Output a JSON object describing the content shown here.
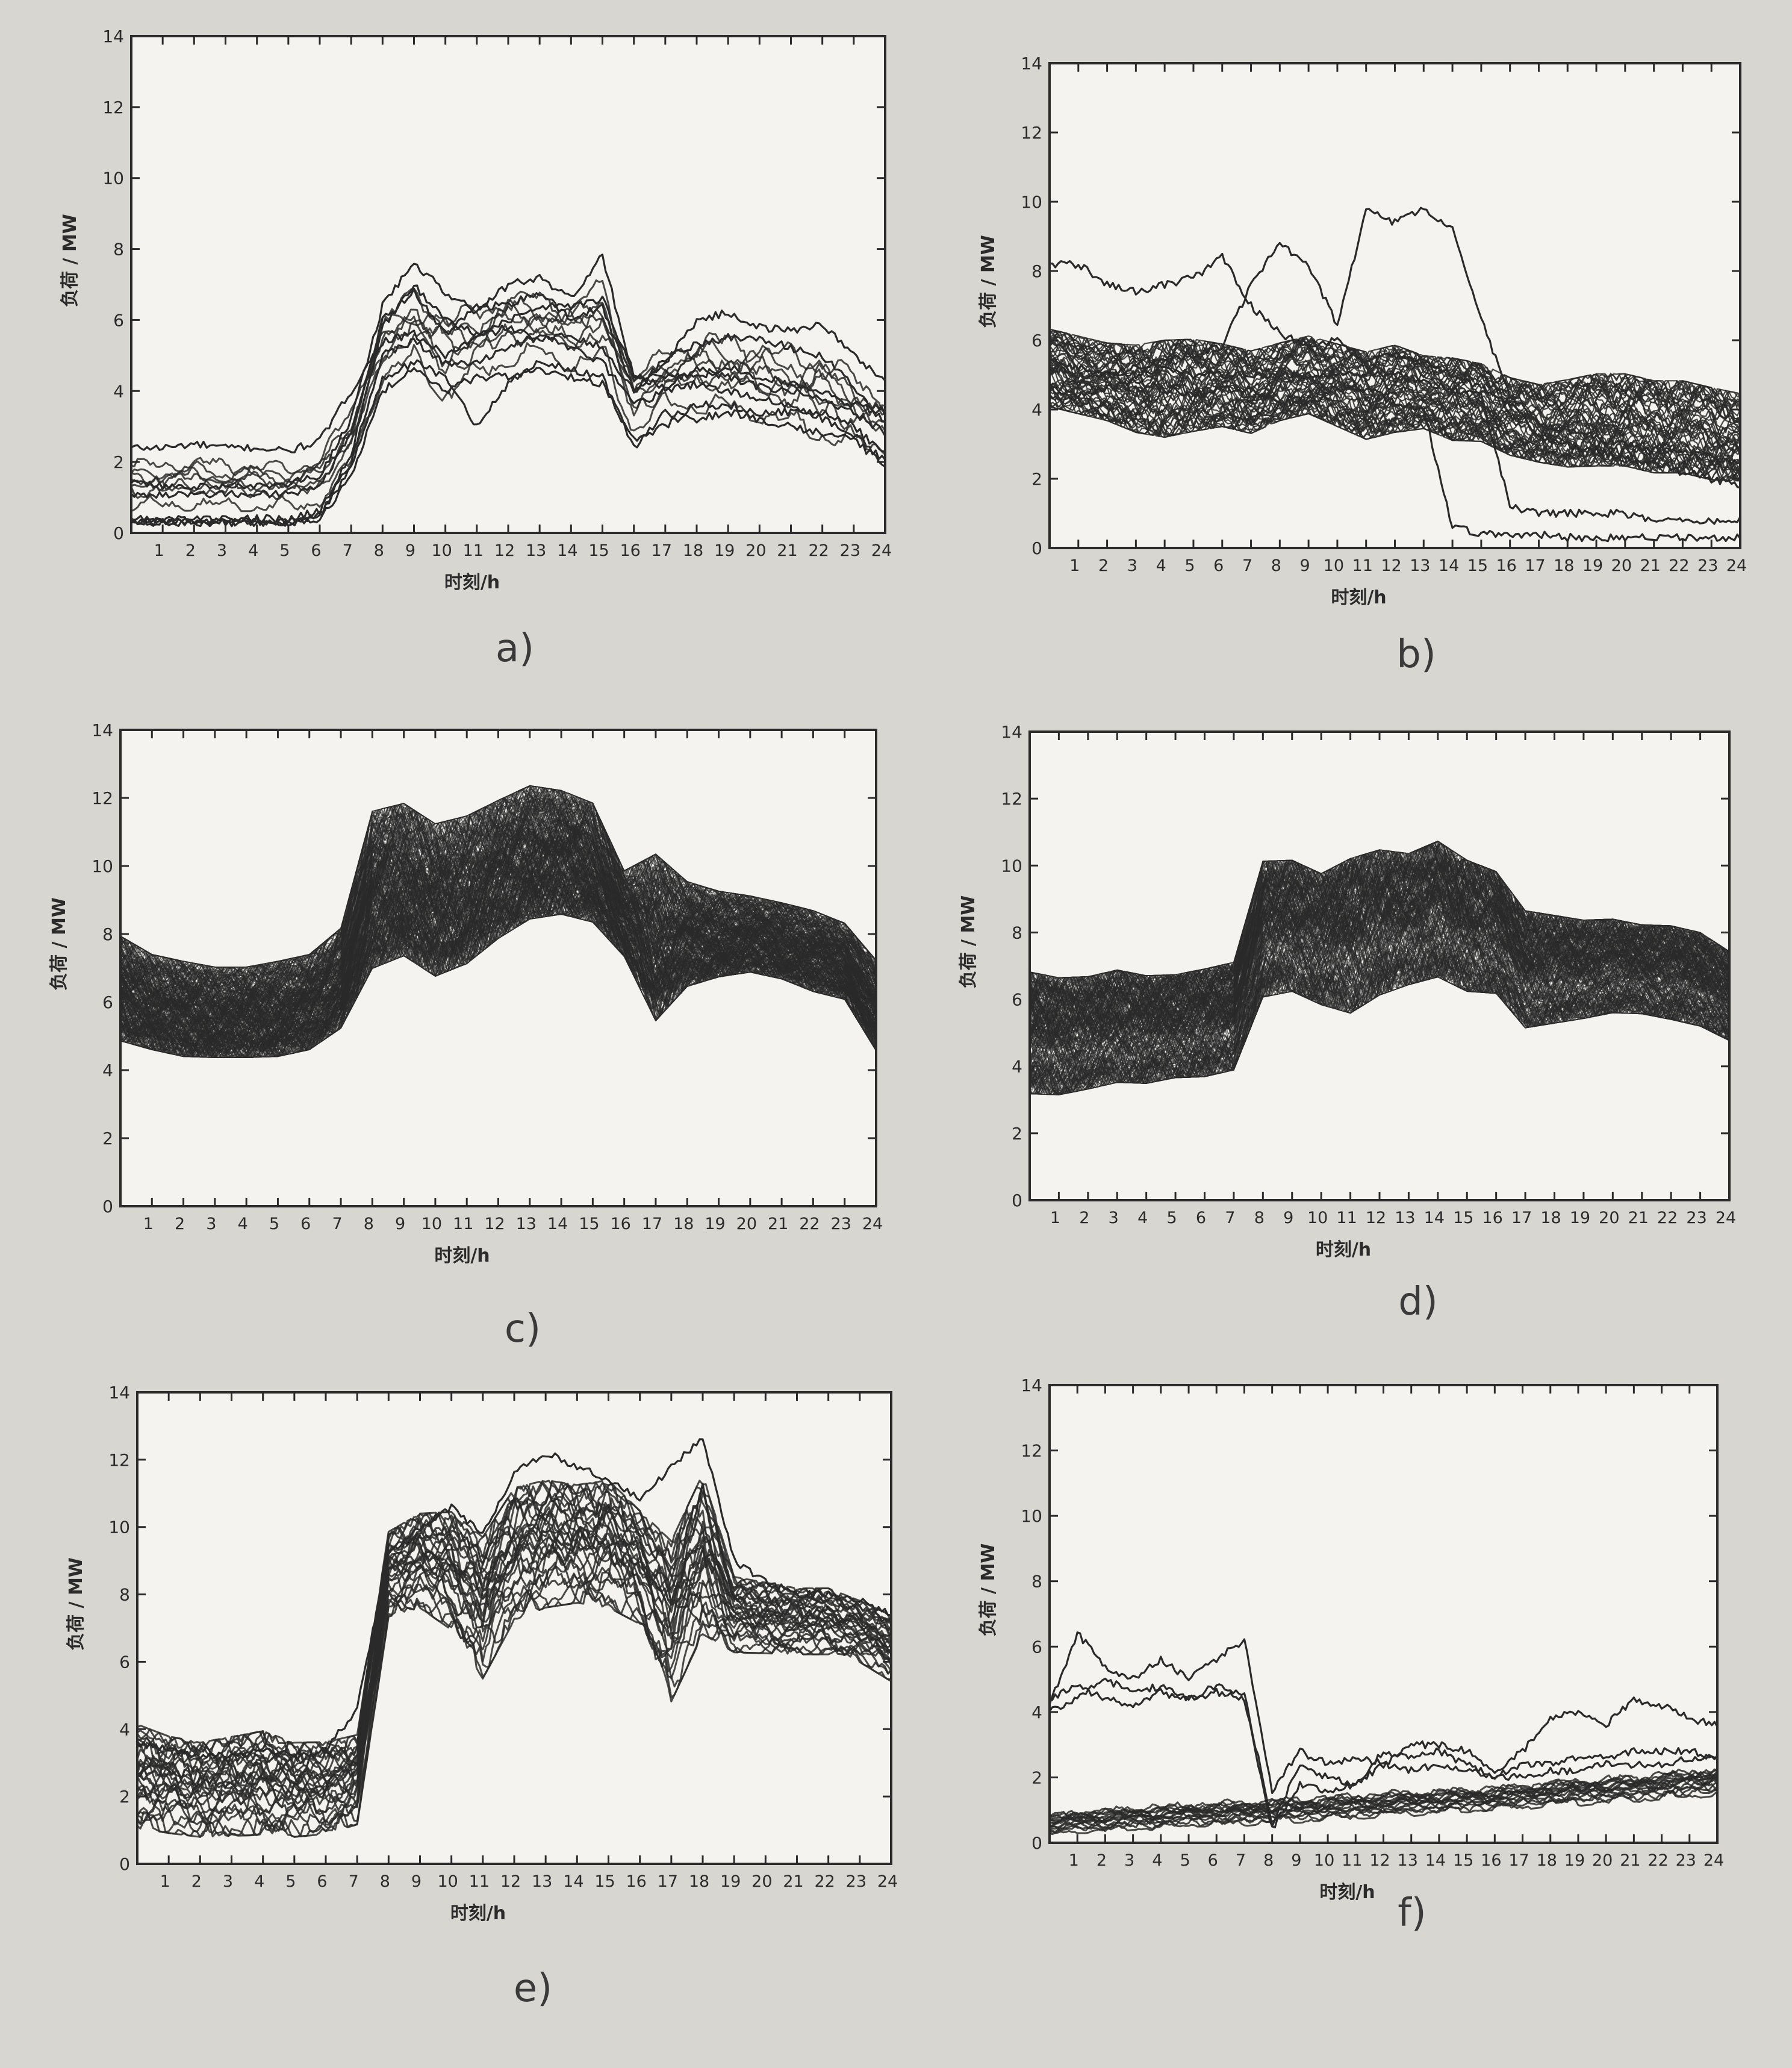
{
  "chart_data": [
    {
      "panel": "a)",
      "type": "line",
      "xlabel": "时刻/h",
      "ylabel": "负荷 / MW",
      "xticks": [
        1,
        2,
        3,
        4,
        5,
        6,
        7,
        8,
        9,
        10,
        11,
        12,
        13,
        14,
        15,
        16,
        17,
        18,
        19,
        20,
        21,
        22,
        23,
        24
      ],
      "yticks": [
        0,
        2,
        4,
        6,
        8,
        10,
        12,
        14
      ],
      "xlim": [
        0,
        24
      ],
      "ylim": [
        0,
        14
      ],
      "band": {
        "count": 7,
        "min": [
          0.3,
          0.3,
          0.3,
          0.3,
          0.3,
          0.3,
          0.4,
          1.4,
          3.8,
          4.2,
          3.0,
          3.8,
          4.2,
          4.4,
          4.1,
          4.2,
          2.3,
          3.0,
          2.9,
          2.8,
          2.6,
          2.3,
          2.0,
          1.8,
          1.8
        ],
        "max": [
          2.4,
          2.4,
          2.5,
          2.4,
          2.4,
          2.3,
          2.6,
          4.0,
          6.6,
          7.6,
          7.0,
          6.9,
          7.4,
          7.3,
          7.0,
          7.8,
          5.0,
          5.7,
          6.1,
          6.2,
          6.0,
          5.9,
          5.8,
          5.2,
          4.3
        ]
      },
      "series": [
        {
          "values": [
            2.4,
            2.4,
            2.5,
            2.4,
            2.4,
            2.3,
            2.6,
            4.0,
            5.4,
            5.6,
            5.0,
            5.5,
            5.8,
            5.4,
            5.6,
            5.2,
            4.0,
            4.8,
            6.0,
            6.2,
            5.8,
            5.7,
            5.9,
            5.0,
            4.3
          ]
        },
        {
          "values": [
            1.4,
            1.3,
            1.3,
            1.3,
            1.3,
            1.4,
            1.6,
            3.2,
            6.4,
            7.6,
            6.8,
            6.2,
            7.0,
            7.2,
            6.6,
            7.8,
            4.4,
            4.4,
            4.4,
            4.7,
            4.4,
            4.2,
            4.0,
            3.6,
            3.4
          ]
        },
        {
          "values": [
            1.1,
            1.1,
            1.1,
            1.1,
            1.1,
            1.1,
            1.3,
            2.8,
            6.0,
            6.8,
            5.6,
            6.4,
            6.4,
            6.8,
            6.0,
            6.4,
            4.0,
            4.9,
            5.3,
            5.5,
            5.5,
            5.2,
            5.0,
            4.1,
            3.1
          ]
        },
        {
          "values": [
            0.4,
            0.4,
            0.4,
            0.4,
            0.4,
            0.4,
            0.6,
            2.2,
            5.8,
            7.0,
            6.0,
            5.6,
            6.0,
            6.4,
            6.4,
            6.6,
            4.4,
            4.1,
            4.6,
            4.4,
            4.1,
            4.0,
            3.8,
            3.4,
            2.8
          ]
        },
        {
          "values": [
            0.3,
            0.3,
            0.3,
            0.3,
            0.3,
            0.3,
            0.5,
            2.0,
            5.0,
            5.4,
            4.8,
            4.8,
            5.2,
            5.6,
            5.2,
            4.8,
            3.6,
            4.0,
            4.2,
            4.0,
            3.8,
            3.6,
            3.2,
            2.8,
            2.0
          ]
        },
        {
          "values": [
            0.3,
            0.3,
            0.3,
            0.3,
            0.3,
            0.3,
            0.5,
            1.8,
            4.4,
            4.8,
            4.4,
            3.0,
            4.2,
            4.8,
            4.6,
            4.4,
            2.4,
            3.4,
            3.2,
            3.4,
            3.2,
            3.0,
            2.8,
            2.6,
            1.9
          ]
        },
        {
          "values": [
            0.3,
            0.3,
            0.3,
            0.3,
            0.3,
            0.3,
            0.4,
            1.6,
            4.0,
            4.6,
            4.0,
            4.4,
            4.4,
            4.6,
            4.4,
            4.2,
            2.6,
            3.0,
            3.6,
            3.6,
            3.4,
            3.4,
            3.4,
            3.0,
            2.2
          ]
        }
      ]
    },
    {
      "panel": "b)",
      "type": "line",
      "xlabel": "时刻/h",
      "ylabel": "负荷 / MW",
      "xticks": [
        1,
        2,
        3,
        4,
        5,
        6,
        7,
        8,
        9,
        10,
        11,
        12,
        13,
        14,
        15,
        16,
        17,
        18,
        19,
        20,
        21,
        22,
        23,
        24
      ],
      "yticks": [
        0,
        2,
        4,
        6,
        8,
        10,
        12,
        14
      ],
      "xlim": [
        0,
        24
      ],
      "ylim": [
        0,
        14
      ],
      "band": {
        "count": 55,
        "min": [
          3.6,
          3.4,
          3.2,
          2.8,
          2.6,
          2.8,
          3.0,
          2.8,
          3.2,
          3.4,
          3.0,
          2.6,
          2.8,
          3.0,
          2.6,
          2.6,
          2.2,
          2.0,
          1.8,
          1.8,
          1.8,
          1.6,
          1.6,
          1.4,
          1.4
        ],
        "max": [
          6.8,
          6.6,
          6.4,
          6.4,
          6.6,
          6.6,
          6.4,
          6.2,
          6.4,
          6.6,
          6.4,
          6.2,
          6.4,
          6.0,
          6.0,
          5.8,
          5.4,
          5.2,
          5.4,
          5.6,
          5.6,
          5.4,
          5.4,
          5.2,
          5.0
        ]
      },
      "series": [
        {
          "values": [
            8.2,
            8.2,
            7.6,
            7.4,
            7.6,
            7.8,
            8.4,
            7.0,
            6.2,
            5.8,
            6.0,
            5.4,
            5.6,
            5.4,
            5.0,
            4.6,
            4.2,
            3.2,
            3.0,
            2.8,
            2.6,
            2.4,
            2.2,
            2.0,
            1.8
          ]
        },
        {
          "values": [
            5.4,
            5.2,
            5.0,
            5.2,
            5.4,
            5.6,
            5.8,
            7.6,
            8.8,
            8.2,
            6.4,
            9.8,
            9.4,
            9.8,
            9.2,
            6.6,
            4.4,
            3.6,
            3.4,
            3.2,
            3.0,
            2.8,
            2.8,
            2.6,
            2.4
          ]
        },
        {
          "values": [
            4.6,
            4.4,
            4.6,
            4.8,
            4.6,
            4.4,
            4.6,
            4.6,
            4.2,
            4.2,
            4.6,
            4.6,
            4.2,
            4.0,
            0.6,
            0.4,
            0.4,
            0.4,
            0.3,
            0.3,
            0.3,
            0.3,
            0.3,
            0.3,
            0.3
          ]
        },
        {
          "values": [
            5.2,
            5.0,
            5.0,
            5.0,
            5.2,
            5.0,
            5.0,
            5.0,
            5.0,
            5.0,
            5.0,
            5.0,
            5.0,
            4.8,
            4.6,
            4.4,
            1.2,
            1.0,
            1.0,
            1.0,
            1.0,
            0.8,
            0.8,
            0.8,
            0.8
          ]
        }
      ]
    },
    {
      "panel": "c)",
      "type": "line",
      "xlabel": "时刻/h",
      "ylabel": "负荷 / MW",
      "xticks": [
        1,
        2,
        3,
        4,
        5,
        6,
        7,
        8,
        9,
        10,
        11,
        12,
        13,
        14,
        15,
        16,
        17,
        18,
        19,
        20,
        21,
        22,
        23,
        24
      ],
      "yticks": [
        0,
        2,
        4,
        6,
        8,
        10,
        12,
        14
      ],
      "xlim": [
        0,
        24
      ],
      "ylim": [
        0,
        14
      ],
      "band": {
        "count": 300,
        "min": [
          4.2,
          4.0,
          3.8,
          3.8,
          3.8,
          3.8,
          4.0,
          4.6,
          6.0,
          6.4,
          5.8,
          6.2,
          7.0,
          7.6,
          7.8,
          7.6,
          6.8,
          4.4,
          5.8,
          6.2,
          6.4,
          6.2,
          5.8,
          5.6,
          4.0
        ],
        "max": [
          8.6,
          8.0,
          7.8,
          7.6,
          7.6,
          7.8,
          8.0,
          8.8,
          12.6,
          12.8,
          12.2,
          12.4,
          12.8,
          13.2,
          13.0,
          12.6,
          10.4,
          11.4,
          10.2,
          9.8,
          9.6,
          9.4,
          9.2,
          8.8,
          7.8
        ]
      },
      "series": []
    },
    {
      "panel": "d)",
      "type": "line",
      "xlabel": "时刻/h",
      "ylabel": "负荷 / MW",
      "xticks": [
        1,
        2,
        3,
        4,
        5,
        6,
        7,
        8,
        9,
        10,
        11,
        12,
        13,
        14,
        15,
        16,
        17,
        18,
        19,
        20,
        21,
        22,
        23,
        24
      ],
      "yticks": [
        0,
        2,
        4,
        6,
        8,
        10,
        12,
        14
      ],
      "xlim": [
        0,
        24
      ],
      "ylim": [
        0,
        14
      ],
      "band": {
        "count": 260,
        "min": [
          2.4,
          2.4,
          2.6,
          2.8,
          2.8,
          3.0,
          3.0,
          3.2,
          5.2,
          5.4,
          5.0,
          4.6,
          5.2,
          5.6,
          5.8,
          5.4,
          5.4,
          4.4,
          4.6,
          4.8,
          5.0,
          5.0,
          4.8,
          4.6,
          4.2
        ],
        "max": [
          7.6,
          7.4,
          7.4,
          7.6,
          7.4,
          7.4,
          7.6,
          7.8,
          11.0,
          11.0,
          10.6,
          11.2,
          11.4,
          11.2,
          11.6,
          11.0,
          10.6,
          9.4,
          9.2,
          9.0,
          9.0,
          8.8,
          8.8,
          8.6,
          8.0
        ]
      },
      "series": []
    },
    {
      "panel": "e)",
      "type": "line",
      "xlabel": "时刻/h",
      "ylabel": "负荷 / MW",
      "xticks": [
        1,
        2,
        3,
        4,
        5,
        6,
        7,
        8,
        9,
        10,
        11,
        12,
        13,
        14,
        15,
        16,
        17,
        18,
        19,
        20,
        21,
        22,
        23,
        24
      ],
      "yticks": [
        0,
        2,
        4,
        6,
        8,
        10,
        12,
        14
      ],
      "xlim": [
        0,
        24
      ],
      "ylim": [
        0,
        14
      ],
      "band": {
        "count": 30,
        "min": [
          0.4,
          0.3,
          0.2,
          0.2,
          0.2,
          0.2,
          0.3,
          0.6,
          6.8,
          7.0,
          6.2,
          4.6,
          6.4,
          6.8,
          7.0,
          6.8,
          6.4,
          3.8,
          5.8,
          5.8,
          5.8,
          5.8,
          5.8,
          5.6,
          5.0
        ],
        "max": [
          4.8,
          4.4,
          4.2,
          4.4,
          4.6,
          4.2,
          4.2,
          4.4,
          10.4,
          11.0,
          11.2,
          10.6,
          12.0,
          12.2,
          12.0,
          12.2,
          11.2,
          10.6,
          12.6,
          9.0,
          8.8,
          8.6,
          8.6,
          8.2,
          7.8
        ]
      },
      "series": [
        {
          "values": [
            3.6,
            3.4,
            3.2,
            3.2,
            3.4,
            3.2,
            3.4,
            4.6,
            9.2,
            10.0,
            10.6,
            9.8,
            11.6,
            12.2,
            11.8,
            11.4,
            10.8,
            11.8,
            12.6,
            9.0,
            8.4,
            8.0,
            8.0,
            7.8,
            7.4
          ]
        }
      ]
    },
    {
      "panel": "f)",
      "type": "line",
      "xlabel": "时刻/h",
      "ylabel": "负荷 / MW",
      "xticks": [
        1,
        2,
        3,
        4,
        5,
        6,
        7,
        8,
        9,
        10,
        11,
        12,
        13,
        14,
        15,
        16,
        17,
        18,
        19,
        20,
        21,
        22,
        23,
        24
      ],
      "yticks": [
        0,
        2,
        4,
        6,
        8,
        10,
        12,
        14
      ],
      "xlim": [
        0,
        24
      ],
      "ylim": [
        0,
        14
      ],
      "band": {
        "count": 16,
        "min": [
          0.0,
          0.1,
          0.1,
          0.2,
          0.2,
          0.3,
          0.3,
          0.3,
          0.4,
          0.4,
          0.5,
          0.5,
          0.6,
          0.6,
          0.7,
          0.7,
          0.8,
          0.8,
          0.9,
          0.9,
          1.0,
          1.0,
          1.1,
          1.1,
          1.2
        ],
        "max": [
          1.2,
          1.4,
          1.4,
          1.5,
          1.5,
          1.6,
          1.6,
          1.7,
          1.7,
          1.8,
          1.8,
          1.9,
          1.9,
          2.0,
          2.0,
          2.1,
          2.1,
          2.2,
          2.3,
          2.4,
          2.4,
          2.5,
          2.6,
          2.7,
          2.8
        ]
      },
      "series": [
        {
          "values": [
            4.2,
            6.4,
            5.4,
            5.0,
            5.6,
            5.0,
            5.6,
            6.2,
            1.6,
            2.8,
            2.4,
            2.6,
            2.4,
            3.0,
            3.0,
            2.8,
            2.2,
            2.8,
            3.8,
            4.0,
            3.6,
            4.4,
            4.2,
            3.8,
            3.6
          ]
        },
        {
          "values": [
            4.0,
            4.4,
            5.0,
            4.6,
            4.8,
            4.4,
            4.8,
            4.6,
            0.6,
            2.4,
            2.0,
            1.8,
            2.8,
            2.6,
            2.8,
            2.4,
            2.0,
            2.4,
            2.4,
            2.6,
            2.6,
            2.8,
            2.8,
            2.8,
            2.6
          ]
        },
        {
          "values": [
            4.4,
            4.8,
            4.4,
            4.2,
            4.6,
            4.4,
            4.6,
            4.4,
            0.4,
            1.8,
            1.6,
            1.8,
            2.4,
            2.2,
            2.4,
            2.2,
            2.0,
            2.0,
            2.2,
            2.2,
            2.4,
            2.4,
            2.4,
            2.6,
            2.6
          ]
        }
      ]
    }
  ]
}
